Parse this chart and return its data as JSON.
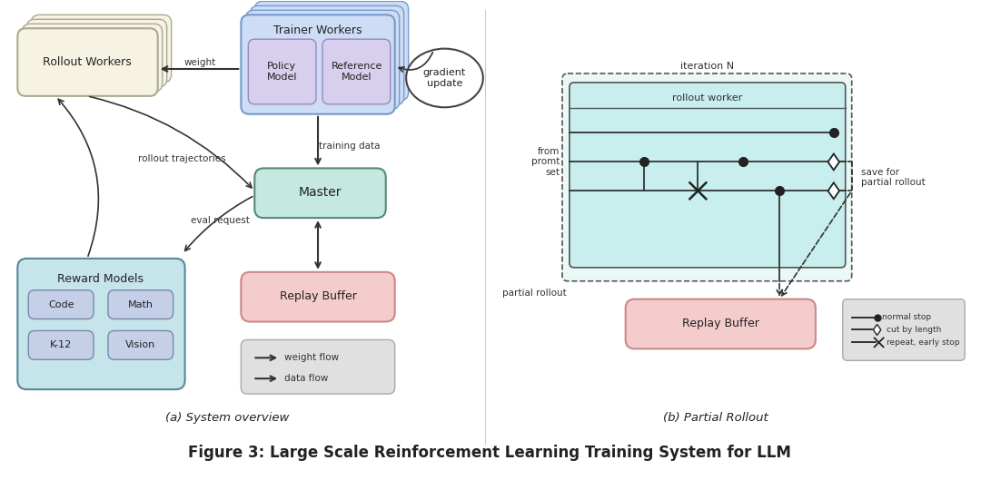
{
  "title": "Figure 3: Large Scale Reinforcement Learning Training System for LLM",
  "subtitle_a": "(a) System overview",
  "subtitle_b": "(b) Partial Rollout",
  "bg_color": "#ffffff",
  "colors": {
    "rollout_workers": "#f7f3e3",
    "trainer_workers_outer": "#ccddf5",
    "trainer_workers_inner": "#d8ceee",
    "master": "#c5e8e0",
    "reward_models": "#c5e5ea",
    "reward_sub": "#c5cfe8",
    "replay_buffer": "#f5cccc",
    "legend_box": "#e0e0e0",
    "rollout_worker_box": "#c8eeee",
    "iteration_box": "#eaf8f8"
  },
  "text_color": "#222222"
}
